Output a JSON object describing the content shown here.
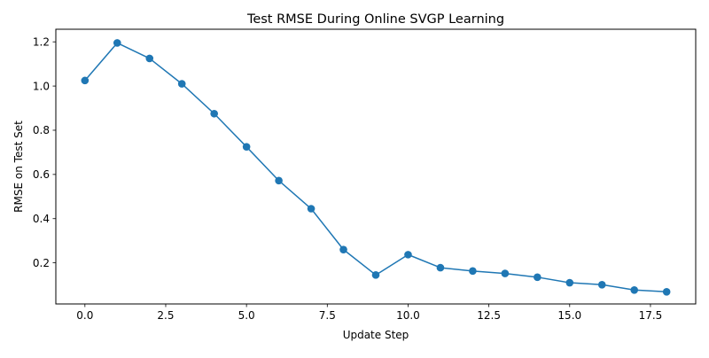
{
  "chart_data": {
    "type": "line",
    "title": "Test RMSE During Online SVGP Learning",
    "xlabel": "Update Step",
    "ylabel": "RMSE on Test Set",
    "xlim": [
      -0.9,
      18.9
    ],
    "ylim": [
      0.014,
      1.257
    ],
    "x_ticks": [
      0.0,
      2.5,
      5.0,
      7.5,
      10.0,
      12.5,
      15.0,
      17.5
    ],
    "x_tick_labels": [
      "0.0",
      "2.5",
      "5.0",
      "7.5",
      "10.0",
      "12.5",
      "15.0",
      "17.5"
    ],
    "y_ticks": [
      0.2,
      0.4,
      0.6,
      0.8,
      1.0,
      1.2
    ],
    "y_tick_labels": [
      "0.2",
      "0.4",
      "0.6",
      "0.8",
      "1.0",
      "1.2"
    ],
    "grid": false,
    "legend": false,
    "series": [
      {
        "color": "#1f77b4",
        "marker": "circle",
        "x": [
          0,
          1,
          2,
          3,
          4,
          5,
          6,
          7,
          8,
          9,
          10,
          11,
          12,
          13,
          14,
          15,
          16,
          17,
          18
        ],
        "y": [
          1.025,
          1.195,
          1.125,
          1.01,
          0.875,
          0.725,
          0.572,
          0.445,
          0.26,
          0.145,
          0.237,
          0.178,
          0.163,
          0.152,
          0.135,
          0.11,
          0.101,
          0.077,
          0.069
        ]
      }
    ]
  }
}
